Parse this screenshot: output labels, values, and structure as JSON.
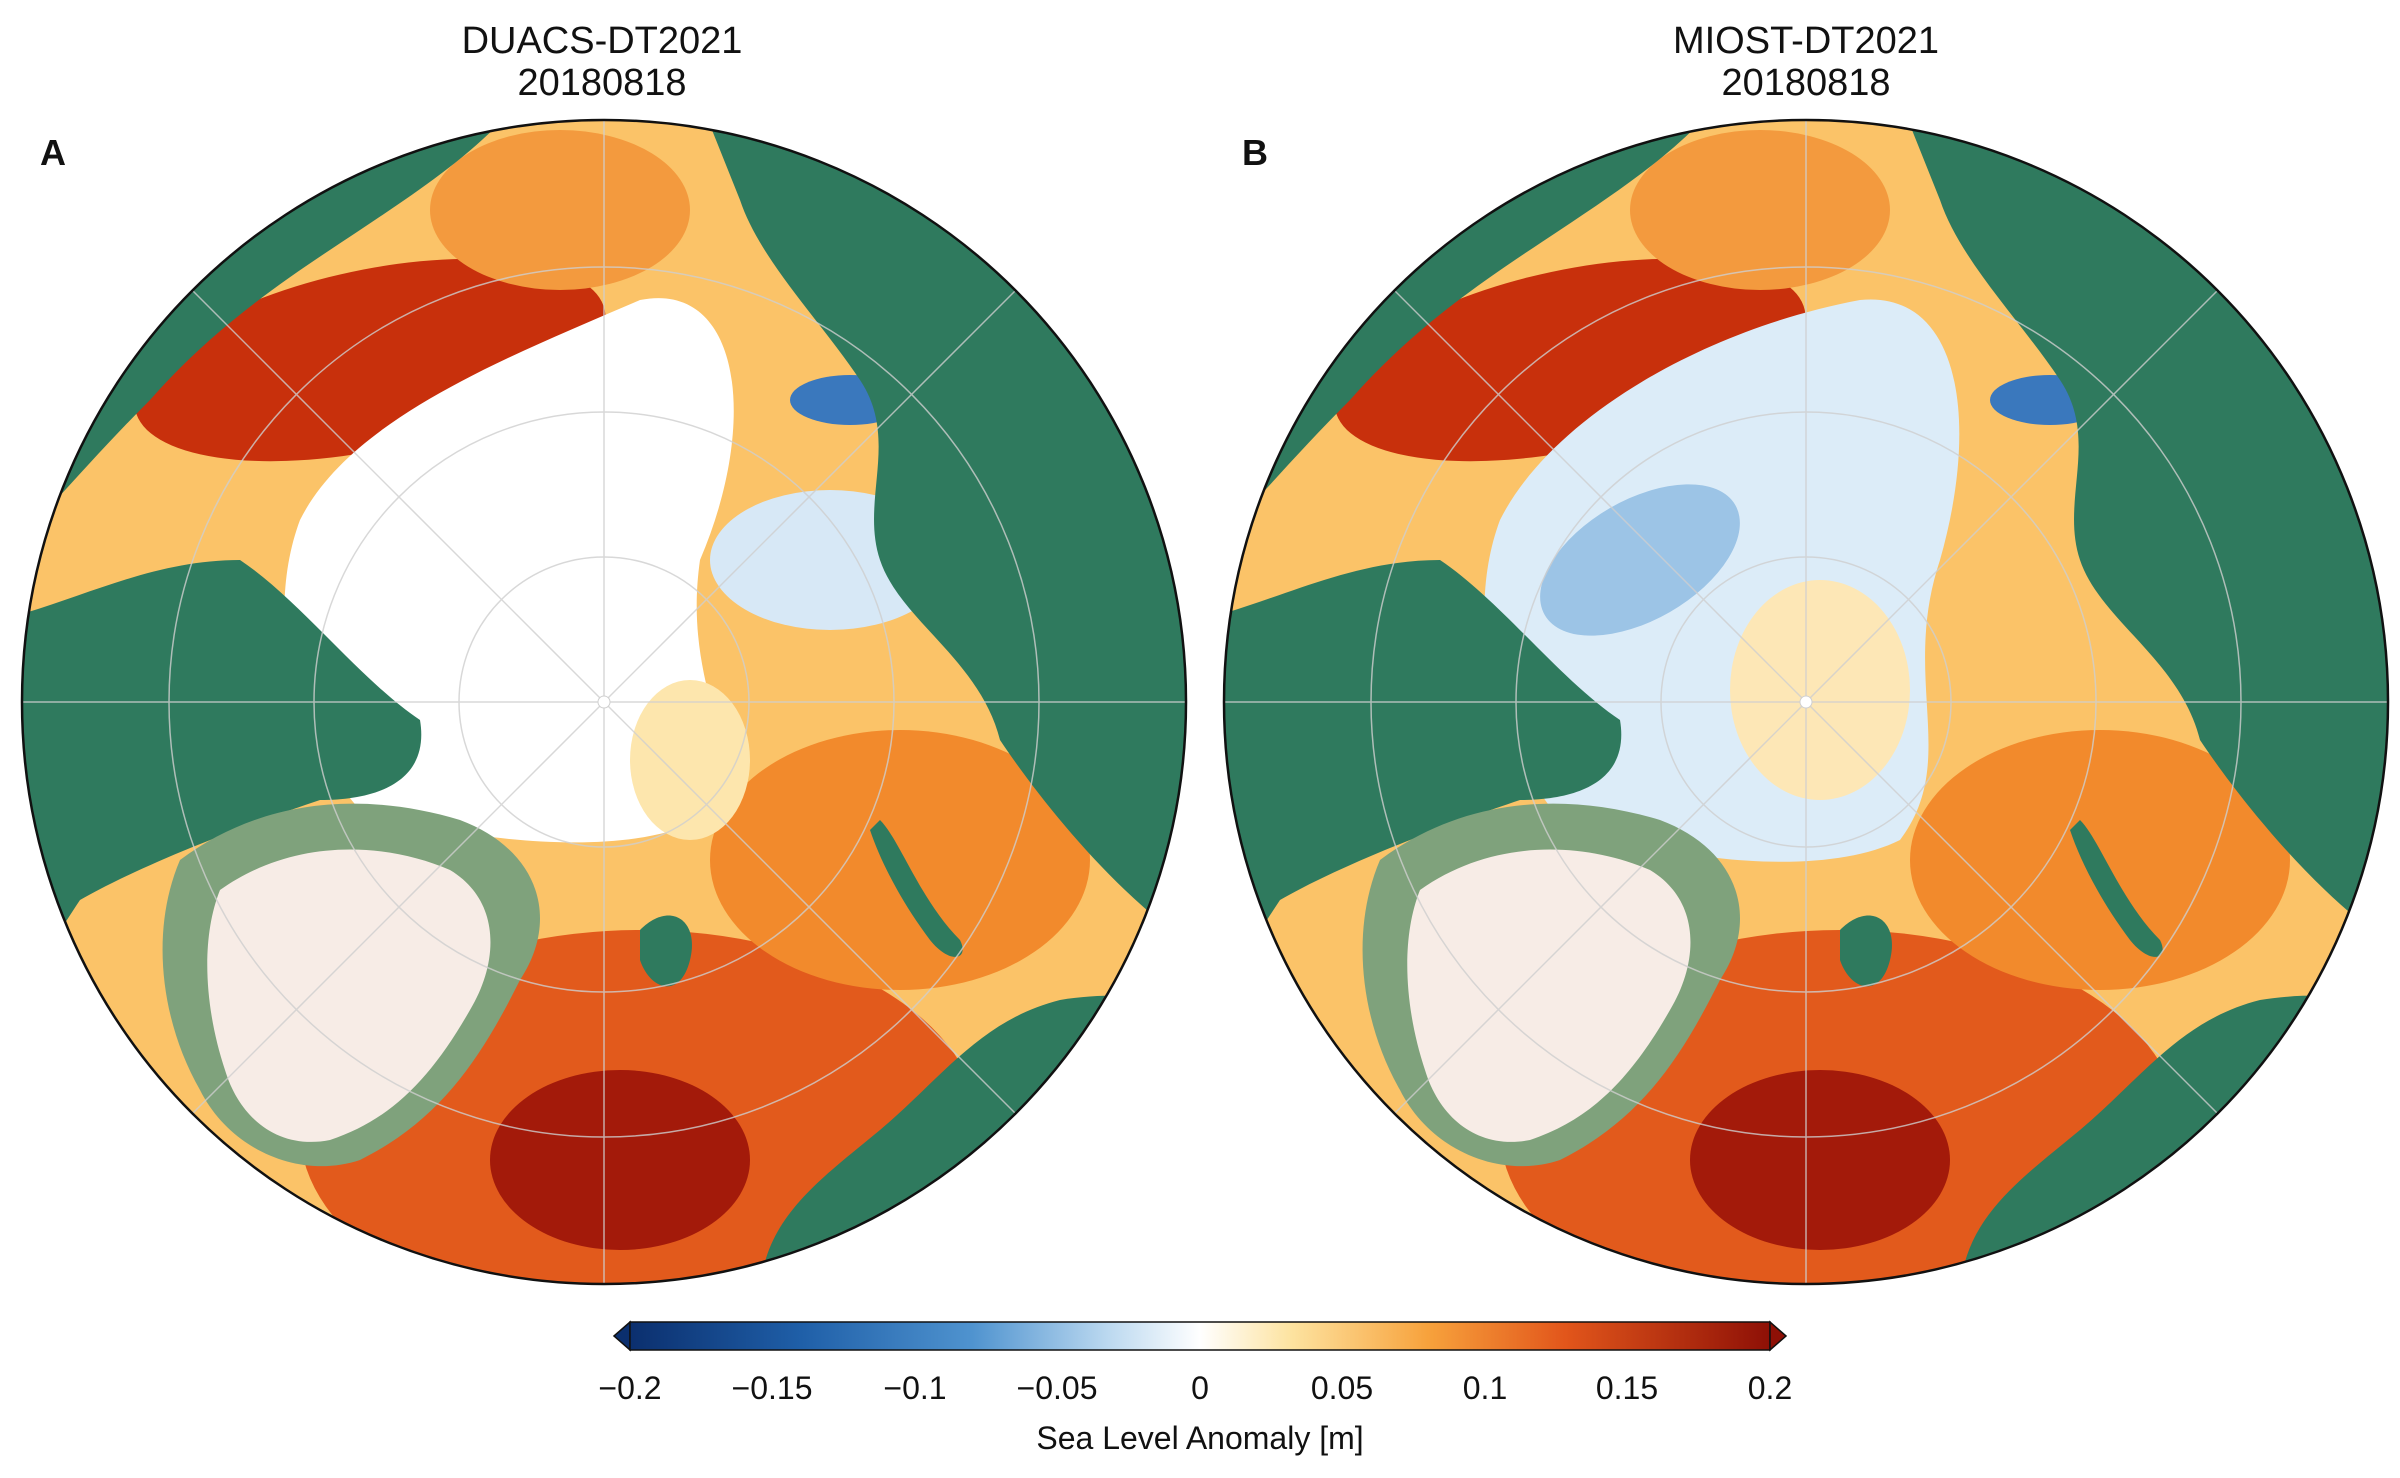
{
  "panels": [
    {
      "letter": "A",
      "title": "DUACS-DT2021",
      "date": "20180818"
    },
    {
      "letter": "B",
      "title": "MIOST-DT2021",
      "date": "20180818"
    }
  ],
  "colorbar": {
    "label": "Sea Level Anomaly [m]",
    "ticks": [
      "−0.2",
      "−0.15",
      "−0.1",
      "−0.05",
      "0",
      "0.05",
      "0.1",
      "0.15",
      "0.2"
    ],
    "range": [
      -0.2,
      0.2
    ],
    "extend": "both"
  },
  "colors": {
    "land": "#2f7a5e",
    "ice_sheet": "#f7ece6",
    "neg_strong": "#0b2f6e",
    "neg": "#4f93cf",
    "neutral": "#ffffff",
    "pos": "#f7a23c",
    "pos_strong": "#8e1006",
    "graticule": "#cfcfcf"
  }
}
